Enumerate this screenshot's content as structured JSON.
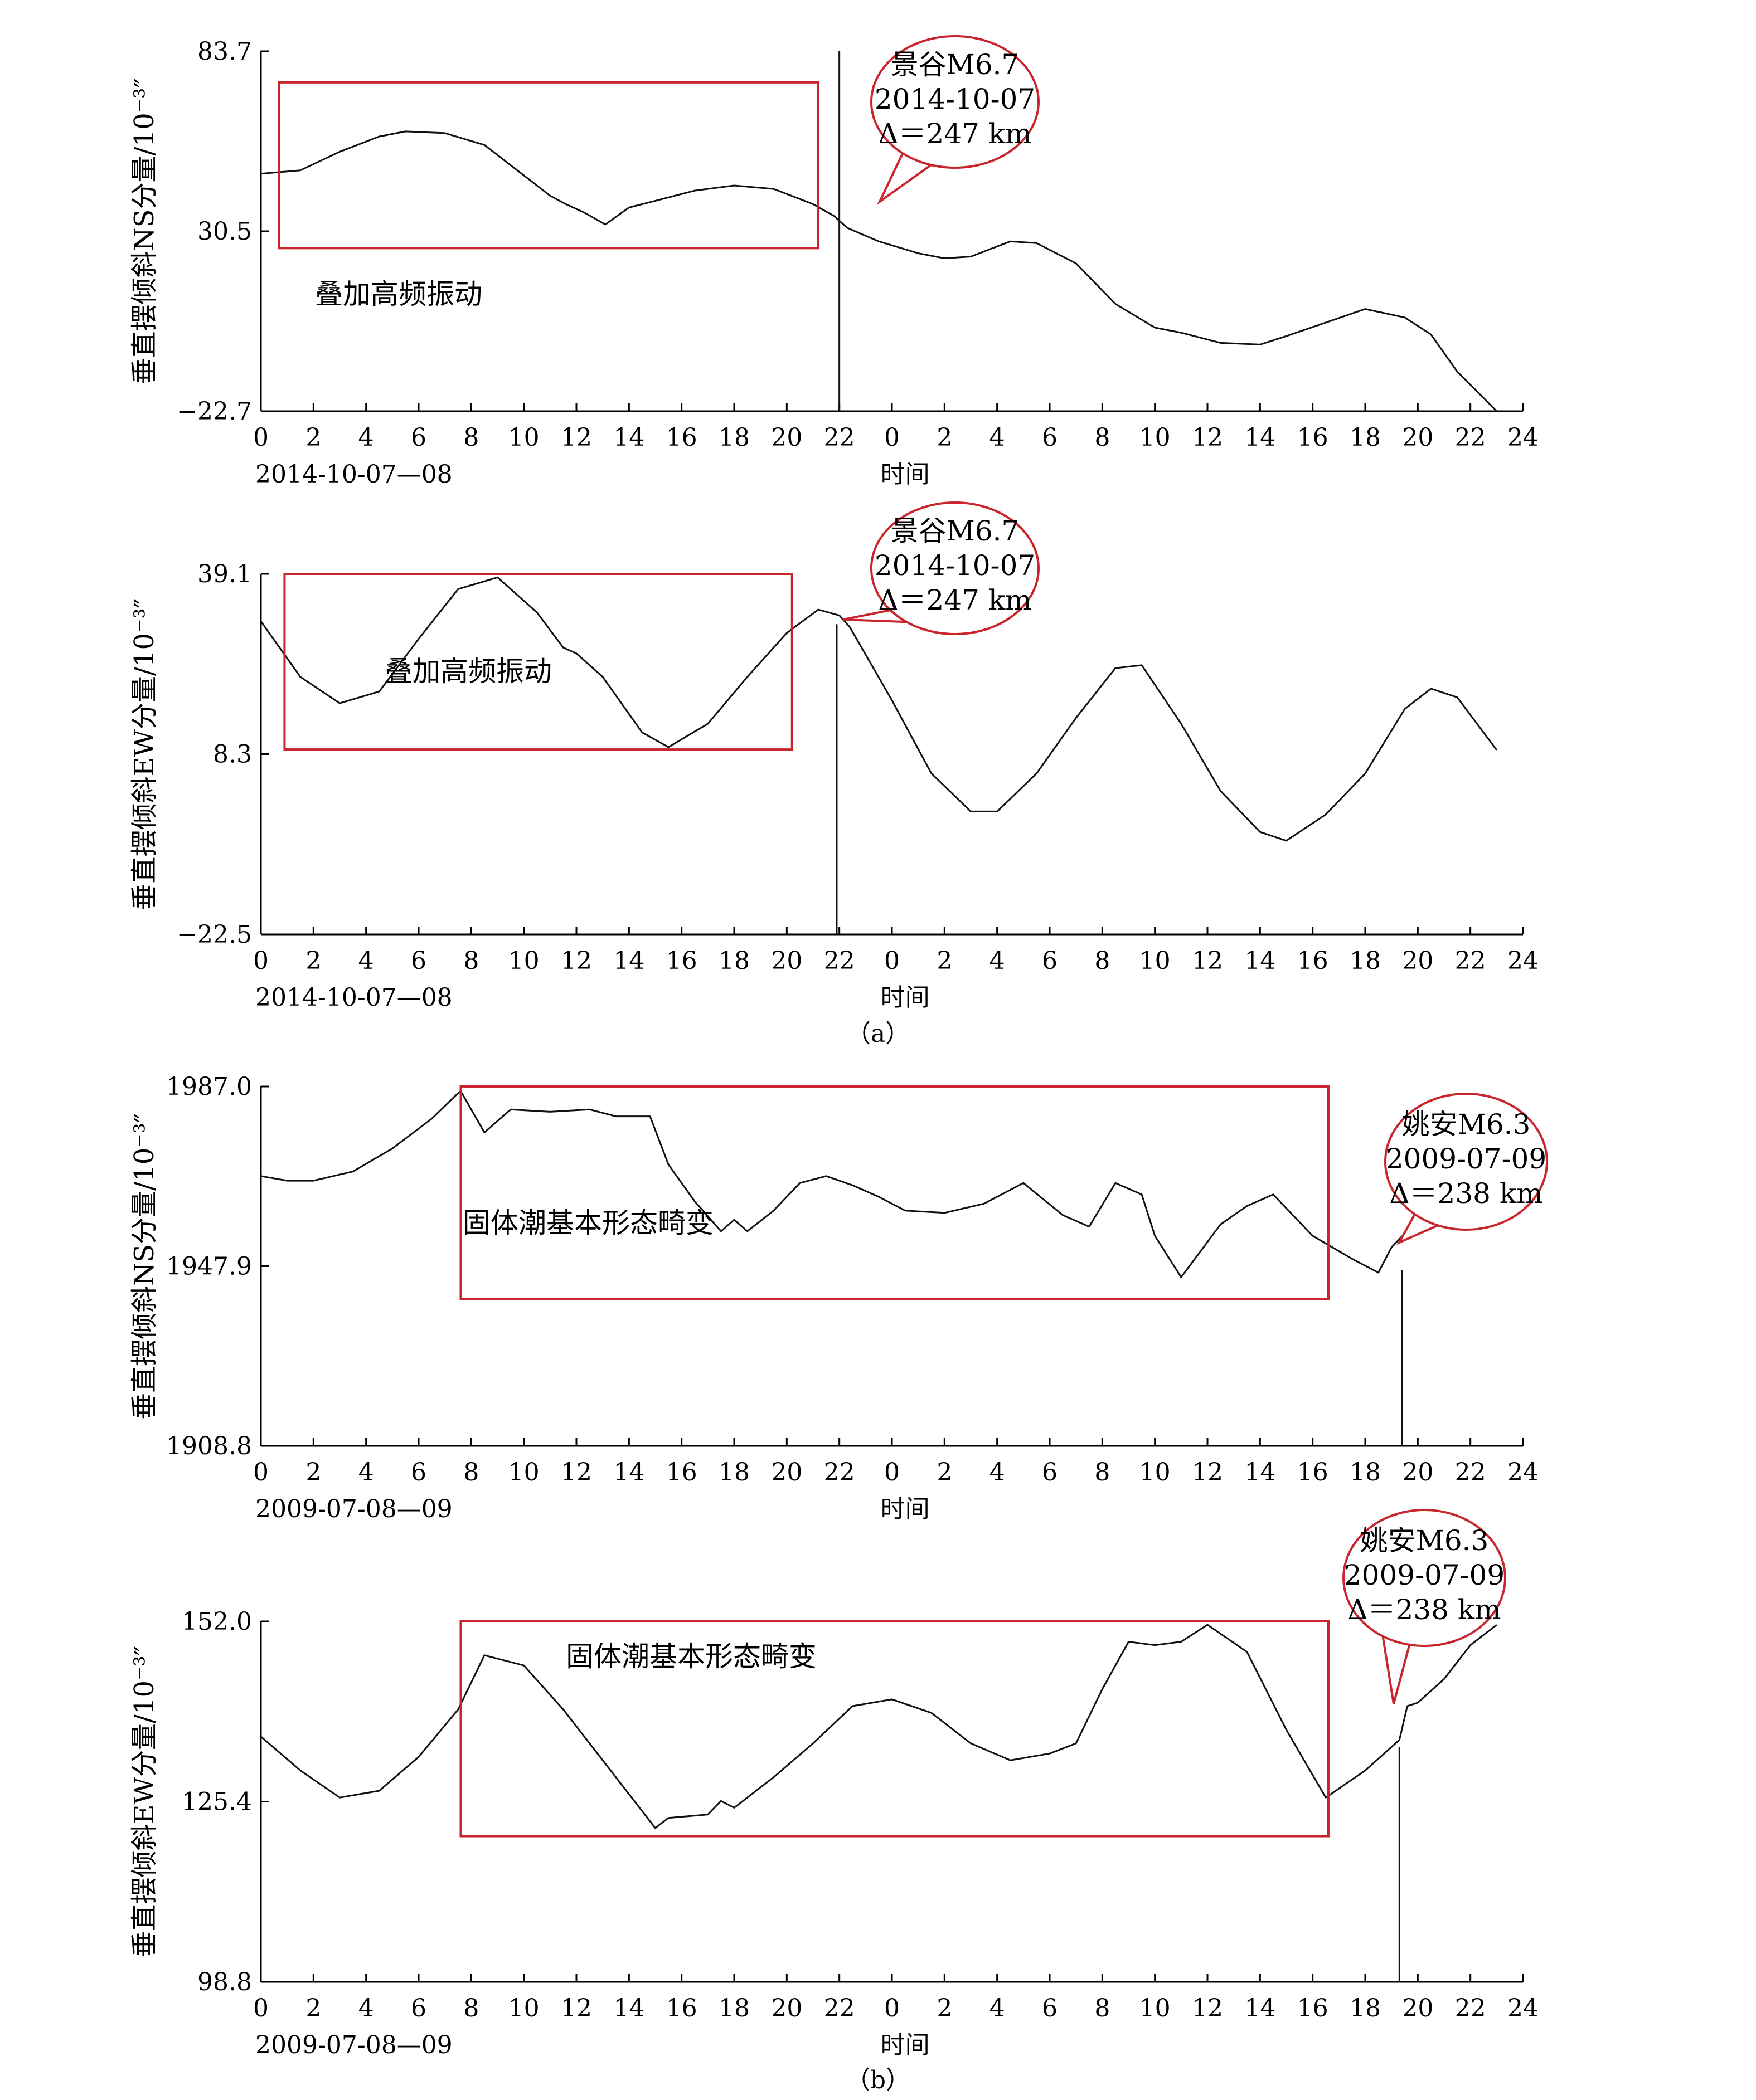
{
  "colors": {
    "axis": "#000000",
    "series": "#111111",
    "annotation_red": "#c8252c"
  },
  "figure": {
    "subcaption_a": "（a）",
    "subcaption_b": "（b）"
  },
  "chart_data": [
    {
      "type": "line",
      "ylabel": "垂直摆倾斜NS分量/10⁻³″",
      "xlabel": "时间",
      "date_label": "2014-10-07—08",
      "yticks": [
        "83.7",
        "30.5",
        "−22.7"
      ],
      "ylim": [
        -22.7,
        83.7
      ],
      "xticklabels": [
        "0",
        "2",
        "4",
        "6",
        "8",
        "10",
        "12",
        "14",
        "16",
        "18",
        "20",
        "22",
        "0",
        "2",
        "4",
        "6",
        "8",
        "10",
        "12",
        "14",
        "16",
        "18",
        "20",
        "22",
        "24"
      ],
      "x_unit": "hour (day 1 then day 2)",
      "grid": false,
      "highlight": {
        "x_range": [
          0.7,
          21.2
        ],
        "y_range": [
          25.5,
          74.5
        ],
        "label": "叠加高频振动"
      },
      "callout": {
        "lines": [
          "景谷M6.7",
          "2014-10-07",
          "Δ＝247 km"
        ]
      },
      "series": [
        {
          "x": [
            0,
            1.5,
            3,
            4.5,
            5.5,
            7,
            8.5,
            10,
            11,
            11.6,
            12.3,
            13.1,
            14,
            15,
            16.5,
            18,
            19.5,
            21,
            21.8,
            22.3,
            23.5,
            25,
            26,
            27,
            28,
            28.5,
            29.5,
            31,
            32.5,
            34,
            35,
            36.5,
            38,
            39,
            40.5,
            42,
            43.5,
            44.5,
            45.5,
            47
          ],
          "y": [
            47.5,
            48.5,
            54,
            58.5,
            60,
            59.5,
            56,
            47,
            41,
            38.5,
            36,
            32.5,
            37.5,
            39.5,
            42.5,
            44,
            43,
            38.5,
            35,
            31.5,
            27.5,
            24,
            22.5,
            23,
            26,
            27.5,
            27,
            21,
            9,
            2,
            0.5,
            -2.5,
            -3,
            -0.5,
            3.5,
            7.5,
            5,
            0,
            -11,
            -22.7
          ]
        }
      ],
      "spike": {
        "x": 22.0,
        "y_top": 83.7,
        "y_bottom": -22.7
      }
    },
    {
      "type": "line",
      "ylabel": "垂直摆倾斜EW分量/10⁻³″",
      "xlabel": "时间",
      "date_label": "2014-10-07—08",
      "yticks": [
        "39.1",
        "8.3",
        "−22.5"
      ],
      "ylim": [
        -22.5,
        39.1
      ],
      "xticklabels": [
        "0",
        "2",
        "4",
        "6",
        "8",
        "10",
        "12",
        "14",
        "16",
        "18",
        "20",
        "22",
        "0",
        "2",
        "4",
        "6",
        "8",
        "10",
        "12",
        "14",
        "16",
        "18",
        "20",
        "22",
        "24"
      ],
      "x_unit": "hour (day 1 then day 2)",
      "grid": false,
      "highlight": {
        "x_range": [
          0.9,
          20.2
        ],
        "y_range": [
          9.1,
          39.1
        ],
        "label": "叠加高频振动"
      },
      "callout": {
        "lines": [
          "景谷M6.7",
          "2014-10-07",
          "Δ＝247 km"
        ]
      },
      "series": [
        {
          "x": [
            0,
            1.5,
            3,
            4.5,
            6,
            7.5,
            9,
            10.5,
            11.5,
            12,
            13,
            14.5,
            15.5,
            17,
            18.5,
            20,
            21.2,
            22,
            22.4,
            24,
            25.5,
            27,
            28,
            29.5,
            31,
            32.5,
            33.5,
            35,
            36.5,
            38,
            39,
            40.5,
            42,
            43.5,
            44.5,
            45.5,
            47
          ],
          "y": [
            31,
            21.5,
            17,
            19,
            28,
            36.5,
            38.5,
            32.5,
            26.5,
            25.5,
            21.5,
            12,
            9.5,
            13.5,
            21.5,
            29,
            33,
            32,
            30,
            17.5,
            5,
            -1.5,
            -1.5,
            5,
            14.5,
            23,
            23.5,
            13.5,
            2,
            -5,
            -6.5,
            -2,
            5,
            16,
            19.5,
            18,
            9
          ]
        }
      ],
      "spike": {
        "x": 21.9,
        "y_top": 30.5,
        "y_bottom": -22.5
      }
    },
    {
      "type": "line",
      "ylabel": "垂直摆倾斜NS分量/10⁻³″",
      "xlabel": "时间",
      "date_label": "2009-07-08—09",
      "yticks": [
        "1987.0",
        "1947.9",
        "1908.8"
      ],
      "ylim": [
        1908.8,
        1987.0
      ],
      "xticklabels": [
        "0",
        "2",
        "4",
        "6",
        "8",
        "10",
        "12",
        "14",
        "16",
        "18",
        "20",
        "22",
        "0",
        "2",
        "4",
        "6",
        "8",
        "10",
        "12",
        "14",
        "16",
        "18",
        "20",
        "22",
        "24"
      ],
      "x_unit": "hour (day 1 then day 2)",
      "grid": false,
      "highlight": {
        "x_range": [
          7.6,
          40.6
        ],
        "y_range": [
          1940.8,
          1987.0
        ],
        "label": "固体潮基本形态畸变"
      },
      "callout": {
        "lines": [
          "姚安M6.3",
          "2009-07-09",
          "Δ＝238 km"
        ]
      },
      "series": [
        {
          "x": [
            0,
            1,
            2,
            3.5,
            5,
            6.5,
            7.4,
            7.6,
            8.5,
            9.5,
            11,
            12.5,
            13.5,
            14.8,
            15.5,
            16.5,
            17.5,
            18,
            18.5,
            19.5,
            20.5,
            21.5,
            22.5,
            23.5,
            24.5,
            26,
            27.5,
            29,
            30.5,
            31.5,
            32.5,
            33.5,
            34,
            35,
            36.5,
            37.5,
            38.5,
            40,
            41.5,
            42.5,
            43,
            44,
            45,
            46,
            47
          ],
          "y": [
            1967.5,
            1966.5,
            1966.5,
            1968.5,
            1973.5,
            1980,
            1985,
            1986,
            1977,
            1982,
            1981.5,
            1982,
            1980.5,
            1980.5,
            1970,
            1962,
            1955.5,
            1958,
            1955.5,
            1960,
            1966,
            1967.5,
            1965.5,
            1963,
            1960,
            1959.5,
            1961.5,
            1966,
            1959,
            1956.5,
            1966,
            1963.5,
            1954.5,
            1945.5,
            1957,
            1961,
            1963.5,
            1954.5,
            1949.5,
            1946.5,
            1952,
            1958,
            1960.5,
            1960,
            1957.5
          ]
        }
      ],
      "spike": {
        "x": 43.4,
        "y_top": 1947,
        "y_bottom": 1908.8
      }
    },
    {
      "type": "line",
      "ylabel": "垂直摆倾斜EW分量/10⁻³″",
      "xlabel": "时间",
      "date_label": "2009-07-08—09",
      "yticks": [
        "152.0",
        "125.4",
        "98.8"
      ],
      "ylim": [
        98.8,
        152.0
      ],
      "xticklabels": [
        "0",
        "2",
        "4",
        "6",
        "8",
        "10",
        "12",
        "14",
        "16",
        "18",
        "20",
        "22",
        "0",
        "2",
        "4",
        "6",
        "8",
        "10",
        "12",
        "14",
        "16",
        "18",
        "20",
        "22",
        "24"
      ],
      "x_unit": "hour (day 1 then day 2)",
      "grid": false,
      "highlight": {
        "x_range": [
          7.6,
          40.6
        ],
        "y_range": [
          120.3,
          152.0
        ],
        "label": "固体潮基本形态畸变"
      },
      "callout": {
        "lines": [
          "姚安M6.3",
          "2009-07-09",
          "Δ＝238 km"
        ]
      },
      "series": [
        {
          "x": [
            0,
            1.5,
            3,
            4.5,
            6,
            7.5,
            8.5,
            10,
            11.5,
            13,
            14.5,
            15,
            15.5,
            17,
            17.5,
            18,
            19.5,
            21,
            22.5,
            24,
            25.5,
            27,
            28.5,
            30,
            31,
            32,
            33,
            34,
            35,
            36,
            37.5,
            39,
            40.5,
            42,
            43.3,
            43.6,
            44,
            45,
            46,
            47
          ],
          "y": [
            135,
            130,
            126,
            127,
            132,
            139,
            147,
            145.5,
            139,
            131.5,
            124,
            121.5,
            123,
            123.5,
            125.5,
            124.5,
            129,
            134,
            139.5,
            140.5,
            138.5,
            134,
            131.5,
            132.5,
            134,
            142,
            149,
            148.5,
            149,
            151.5,
            147.5,
            136,
            126,
            130,
            134.5,
            139.5,
            140,
            143.5,
            148.5,
            151.5
          ]
        }
      ],
      "spike": {
        "x": 43.3,
        "y_top": 133.5,
        "y_bottom": 98.8
      }
    }
  ]
}
